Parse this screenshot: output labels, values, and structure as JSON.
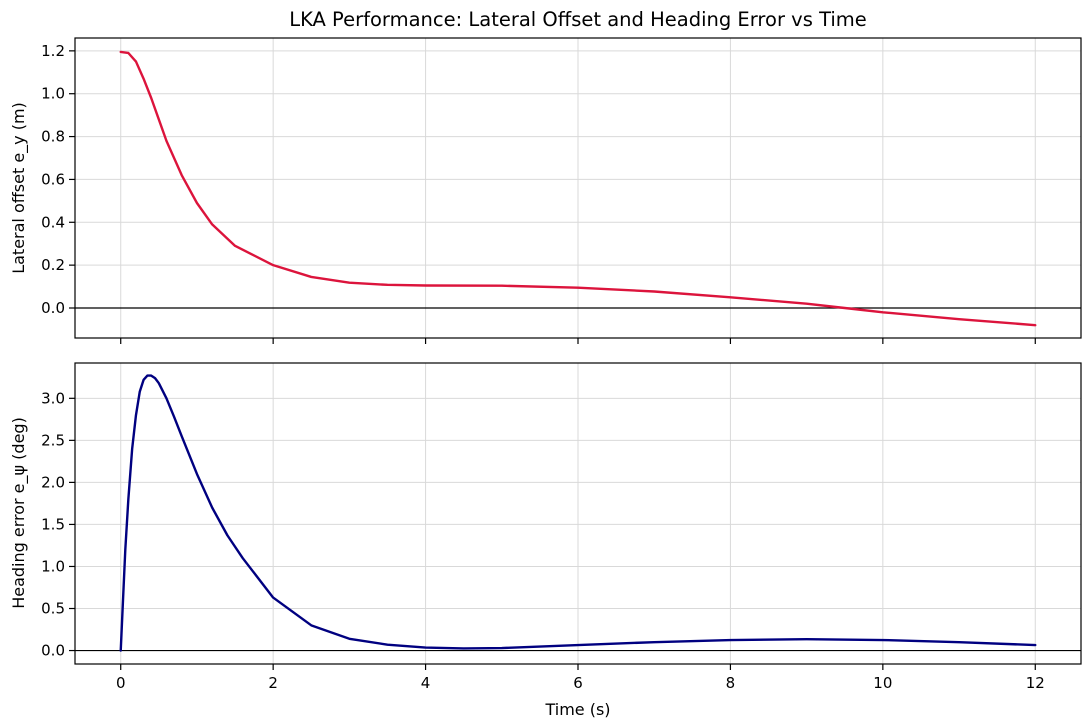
{
  "chart_data": [
    {
      "type": "line",
      "title": "LKA Performance: Lateral Offset and Heading Error vs Time",
      "xlabel": "",
      "ylabel": "Lateral offset e_y (m)",
      "xlim": [
        -0.6,
        12.6
      ],
      "ylim": [
        -0.14,
        1.26
      ],
      "x_ticks": [
        0,
        2,
        4,
        6,
        8,
        10,
        12
      ],
      "x_tick_labels_visible": false,
      "y_ticks": [
        0.0,
        0.2,
        0.4,
        0.6,
        0.8,
        1.0,
        1.2
      ],
      "y_tick_labels": [
        "0.0",
        "0.2",
        "0.4",
        "0.6",
        "0.8",
        "1.0",
        "1.2"
      ],
      "grid": true,
      "zero_line": true,
      "series": [
        {
          "color": "#dc143c",
          "x": [
            0,
            0.1,
            0.2,
            0.3,
            0.4,
            0.5,
            0.6,
            0.8,
            1.0,
            1.2,
            1.5,
            2.0,
            2.5,
            3.0,
            3.5,
            4.0,
            5.0,
            6.0,
            7.0,
            8.0,
            9.0,
            9.5,
            10.0,
            11.0,
            12.0
          ],
          "y": [
            1.195,
            1.19,
            1.15,
            1.07,
            0.98,
            0.88,
            0.78,
            0.62,
            0.49,
            0.39,
            0.29,
            0.2,
            0.145,
            0.118,
            0.108,
            0.105,
            0.104,
            0.095,
            0.077,
            0.05,
            0.02,
            0.0,
            -0.02,
            -0.052,
            -0.08
          ]
        }
      ]
    },
    {
      "type": "line",
      "xlabel": "Time (s)",
      "ylabel": "Heading error e_ψ (deg)",
      "xlim": [
        -0.6,
        12.6
      ],
      "ylim": [
        -0.16,
        3.42
      ],
      "x_ticks": [
        0,
        2,
        4,
        6,
        8,
        10,
        12
      ],
      "x_tick_labels": [
        "0",
        "2",
        "4",
        "6",
        "8",
        "10",
        "12"
      ],
      "y_ticks": [
        0.0,
        0.5,
        1.0,
        1.5,
        2.0,
        2.5,
        3.0
      ],
      "y_tick_labels": [
        "0.0",
        "0.5",
        "1.0",
        "1.5",
        "2.0",
        "2.5",
        "3.0"
      ],
      "grid": true,
      "zero_line": true,
      "series": [
        {
          "color": "#000080",
          "x": [
            0,
            0.03,
            0.06,
            0.1,
            0.15,
            0.2,
            0.25,
            0.3,
            0.35,
            0.4,
            0.45,
            0.5,
            0.6,
            0.7,
            0.8,
            1.0,
            1.2,
            1.4,
            1.6,
            2.0,
            2.5,
            3.0,
            3.5,
            4.0,
            4.5,
            5.0,
            6.0,
            7.0,
            8.0,
            9.0,
            10.0,
            11.0,
            12.0
          ],
          "y": [
            0.0,
            0.6,
            1.2,
            1.8,
            2.4,
            2.8,
            3.08,
            3.22,
            3.27,
            3.27,
            3.24,
            3.18,
            3.0,
            2.78,
            2.55,
            2.1,
            1.7,
            1.37,
            1.1,
            0.63,
            0.3,
            0.14,
            0.07,
            0.035,
            0.025,
            0.03,
            0.065,
            0.1,
            0.125,
            0.135,
            0.125,
            0.1,
            0.065
          ]
        }
      ]
    }
  ]
}
